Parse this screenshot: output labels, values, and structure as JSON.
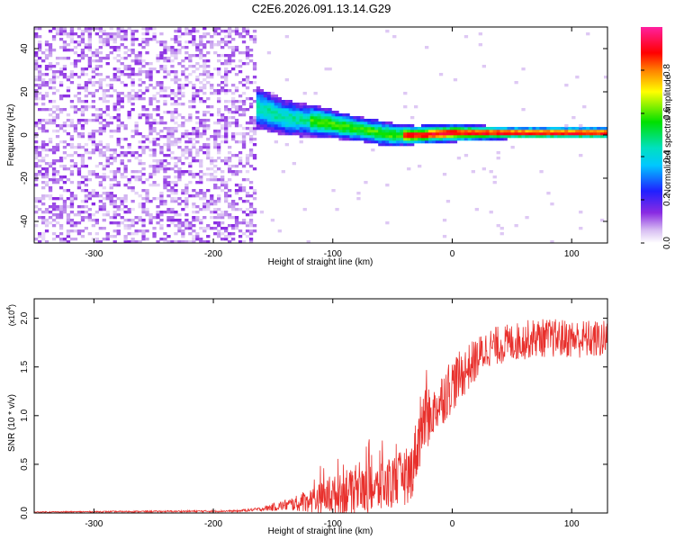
{
  "title": "C2E6.2026.091.13.14.G29",
  "chart_data": [
    {
      "type": "heatmap",
      "xlabel": "Height of straight line (km)",
      "ylabel": "Frequency (Hz)",
      "xlim": [
        -350,
        130
      ],
      "ylim": [
        -50,
        50
      ],
      "xticks": [
        -300,
        -200,
        -100,
        0,
        100
      ],
      "yticks": [
        -40,
        -20,
        0,
        20,
        40
      ],
      "colorbar": {
        "label": "Normalized spectral amplitude",
        "range": [
          0,
          1
        ],
        "ticks": [
          "0.0",
          "0.2",
          "0.4",
          "0.6",
          "0.8"
        ],
        "tick_values": [
          0.0,
          0.2,
          0.4,
          0.6,
          0.8
        ],
        "colormap": "rainbow (white -> purple -> blue -> cyan -> green -> yellow -> red -> magenta)"
      },
      "features": {
        "noise_region_x": [
          -350,
          -165
        ],
        "noise_amplitude": 0.1,
        "signal_track": [
          {
            "x": -165,
            "freq": 13,
            "spread": 7
          },
          {
            "x": -140,
            "freq": 8,
            "spread": 6
          },
          {
            "x": -110,
            "freq": 6,
            "spread": 5
          },
          {
            "x": -80,
            "freq": 3,
            "spread": 4
          },
          {
            "x": -50,
            "freq": 0,
            "spread": 4
          },
          {
            "x": -30,
            "freq": 0,
            "spread": 3
          },
          {
            "x": 0,
            "freq": 1,
            "spread": 3
          },
          {
            "x": 50,
            "freq": 1,
            "spread": 2
          },
          {
            "x": 130,
            "freq": 1,
            "spread": 2
          }
        ]
      }
    },
    {
      "type": "line",
      "xlabel": "Height of straight line (km)",
      "ylabel": "SNR (10 * v/v)",
      "yscale_label": "(x10",
      "yscale_exp": "4",
      "xlim": [
        -350,
        130
      ],
      "ylim": [
        0,
        2.2
      ],
      "xticks": [
        -300,
        -200,
        -100,
        0,
        100
      ],
      "yticks": [
        "0.0",
        "0.5",
        "1.0",
        "1.5",
        "2.0"
      ],
      "ytick_values": [
        0.0,
        0.5,
        1.0,
        1.5,
        2.0
      ],
      "color": "#e8302c",
      "envelope": [
        {
          "x": -350,
          "y": 0.01,
          "noise": 0.005
        },
        {
          "x": -180,
          "y": 0.02,
          "noise": 0.01
        },
        {
          "x": -160,
          "y": 0.04,
          "noise": 0.02
        },
        {
          "x": -130,
          "y": 0.1,
          "noise": 0.08
        },
        {
          "x": -100,
          "y": 0.18,
          "noise": 0.2
        },
        {
          "x": -60,
          "y": 0.25,
          "noise": 0.25
        },
        {
          "x": -35,
          "y": 0.4,
          "noise": 0.3
        },
        {
          "x": -25,
          "y": 0.9,
          "noise": 0.35
        },
        {
          "x": -15,
          "y": 1.05,
          "noise": 0.25
        },
        {
          "x": -5,
          "y": 1.25,
          "noise": 0.3
        },
        {
          "x": 10,
          "y": 1.45,
          "noise": 0.25
        },
        {
          "x": 30,
          "y": 1.7,
          "noise": 0.2
        },
        {
          "x": 70,
          "y": 1.8,
          "noise": 0.2
        },
        {
          "x": 130,
          "y": 1.78,
          "noise": 0.2
        }
      ]
    }
  ]
}
